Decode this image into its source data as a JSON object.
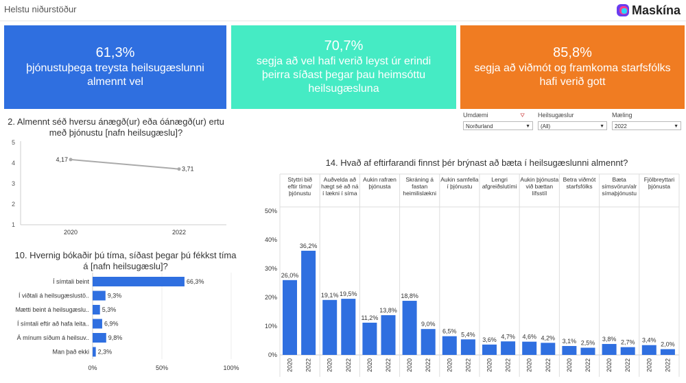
{
  "header": {
    "title": "Helstu niðurstöður",
    "brand": "Maskína"
  },
  "kpis": [
    {
      "value": "61,3%",
      "text": "þjónustuþega treysta heilsugæslunni almennt vel",
      "color": "#2f6fe0"
    },
    {
      "value": "70,7%",
      "text": "segja að vel hafi verið leyst úr erindi þeirra síðast þegar þau heimsóttu heilsugæsluna",
      "color": "#45ebc4"
    },
    {
      "value": "85,8%",
      "text": "segja að viðmót og framkoma starfsfólks hafi verið gott",
      "color": "#f07c22"
    }
  ],
  "filters": [
    {
      "label": "Umdæmi",
      "value": "Norðurland"
    },
    {
      "label": "Heilsugæslur",
      "value": "(All)"
    },
    {
      "label": "Mæling",
      "value": "2022"
    }
  ],
  "chart_data": [
    {
      "type": "line",
      "title": "2. Almennt séð hversu ánægð(ur) eða óánægð(ur) ertu með þjónustu [nafn heilsugæslu]?",
      "x": [
        "2020",
        "2022"
      ],
      "values": [
        4.17,
        3.71
      ],
      "value_labels": [
        "4,17",
        "3,71"
      ],
      "yticks": [
        "1",
        "2",
        "3",
        "4",
        "5"
      ],
      "ylim": [
        1,
        5
      ],
      "color": "#aaaaaa"
    },
    {
      "type": "bar",
      "orientation": "horizontal",
      "title": "10. Hvernig bókaðir þú tíma, síðast þegar þú fékkst tíma á [nafn heilsugæslu]?",
      "categories": [
        "Í símtali beint",
        "Í viðtali á heilsugæslustö..",
        "Mætti beint á heilsugæslu..",
        "Í símtali eftir að hafa leita..",
        "Á mínum síðum á heilsuv..",
        "Man það ekki"
      ],
      "values": [
        66.3,
        9.3,
        5.3,
        6.9,
        9.8,
        2.3
      ],
      "value_labels": [
        "66,3%",
        "9,3%",
        "5,3%",
        "6,9%",
        "9,8%",
        "2,3%"
      ],
      "xticks": [
        "0%",
        "50%",
        "100%"
      ],
      "xlim": [
        0,
        100
      ],
      "color": "#2f6fe0"
    },
    {
      "type": "bar",
      "title": "14. Hvað af eftirfarandi finnst þér brýnast að bæta í heilsugæslunni almennt?",
      "groups": [
        {
          "label": "Styttri bið eftir tíma/ þjónustu",
          "values": [
            26.0,
            36.2
          ],
          "value_labels": [
            "26,0%",
            "36,2%"
          ]
        },
        {
          "label": "Auðvelda að hægt sé að ná í lækni í síma",
          "values": [
            19.1,
            19.5
          ],
          "value_labels": [
            "19,1%",
            "19,5%"
          ]
        },
        {
          "label": "Aukin rafræn þjónusta",
          "values": [
            11.2,
            13.8
          ],
          "value_labels": [
            "11,2%",
            "13,8%"
          ]
        },
        {
          "label": "Skráning á fastan heimilislækni",
          "values": [
            18.8,
            9.0
          ],
          "value_labels": [
            "18,8%",
            "9,0%"
          ]
        },
        {
          "label": "Aukin samfella í þjónustu",
          "values": [
            6.5,
            5.4
          ],
          "value_labels": [
            "6,5%",
            "5,4%"
          ]
        },
        {
          "label": "Lengri afgreiðslutími",
          "values": [
            3.6,
            4.7
          ],
          "value_labels": [
            "3,6%",
            "4,7%"
          ]
        },
        {
          "label": "Aukin þjónusta við bættan lífsstíl",
          "values": [
            4.6,
            4.2
          ],
          "value_labels": [
            "4,6%",
            "4,2%"
          ]
        },
        {
          "label": "Betra viðmót starfsfólks",
          "values": [
            3.1,
            2.5
          ],
          "value_labels": [
            "3,1%",
            "2,5%"
          ]
        },
        {
          "label": "Bæta símsvörun/alr símaþjónustu",
          "values": [
            3.8,
            2.7
          ],
          "value_labels": [
            "3,8%",
            "2,7%"
          ]
        },
        {
          "label": "Fjölbreyttari þjónusta",
          "values": [
            3.4,
            2.0
          ],
          "value_labels": [
            "3,4%",
            "2,0%"
          ]
        }
      ],
      "series": [
        "2020",
        "2022"
      ],
      "yticks": [
        "0%",
        "10%",
        "20%",
        "30%",
        "40%",
        "50%"
      ],
      "ylim": [
        0,
        50
      ],
      "color": "#2f6fe0"
    }
  ]
}
